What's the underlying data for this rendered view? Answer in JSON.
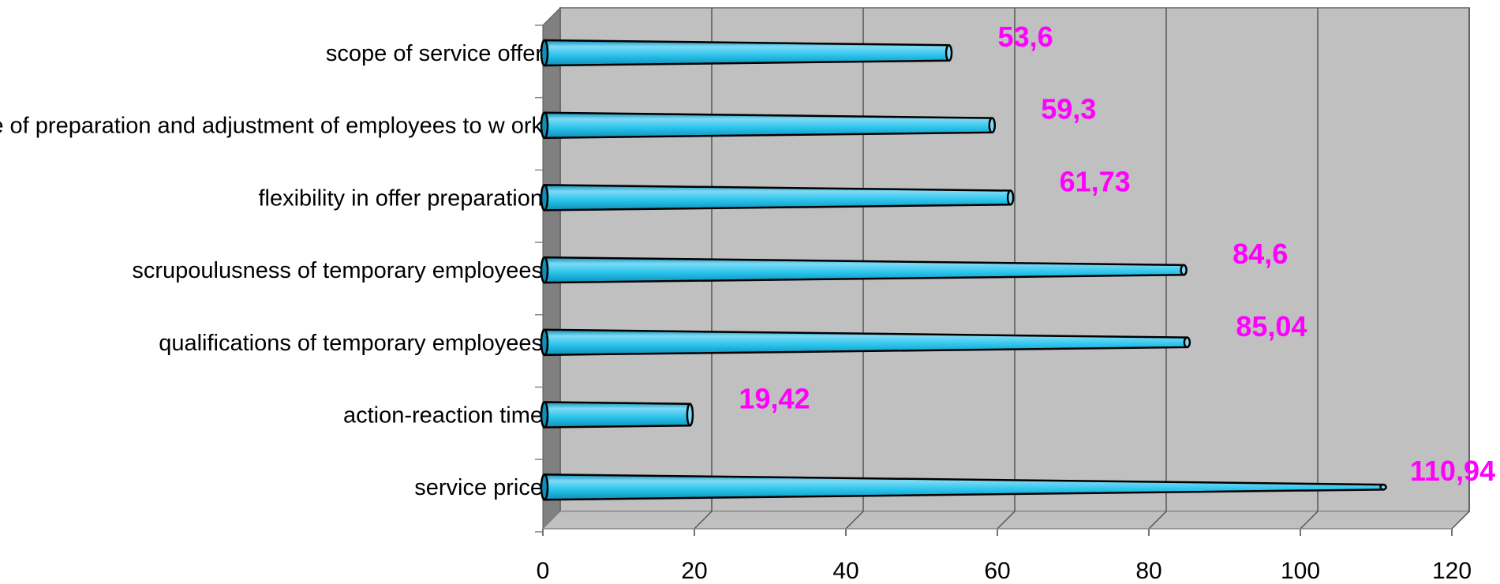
{
  "chart_data": {
    "type": "bar",
    "orientation": "horizontal",
    "style": "3d-cone",
    "categories": [
      "scope of service offer",
      "time of preparation and adjustment of employees to w ork",
      "flexibility in offer preparation",
      "scrupoulusness of temporary employees",
      "qualifications of temporary employees",
      "action-reaction time",
      "service price"
    ],
    "values": [
      53.6,
      59.3,
      61.73,
      84.6,
      85.04,
      19.42,
      110.94
    ],
    "data_labels": [
      "53,6",
      "59,3",
      "61,73",
      "84,6",
      "85,04",
      "19,42",
      "110,94"
    ],
    "x_ticks": [
      "0",
      "20",
      "40",
      "60",
      "80",
      "100",
      "120"
    ],
    "xlim": [
      0,
      120
    ],
    "grid": true,
    "legend": "none",
    "colors": {
      "bar": "#29c4ec",
      "bar_light": "#7fdaf6",
      "bar_dark": "#0f8fb8",
      "plot_back": "#c0c0c0",
      "plot_wall": "#808080",
      "plot_floor": "#c0c0c0",
      "data_label": "#ff00ff",
      "gridline": "#555555"
    }
  }
}
